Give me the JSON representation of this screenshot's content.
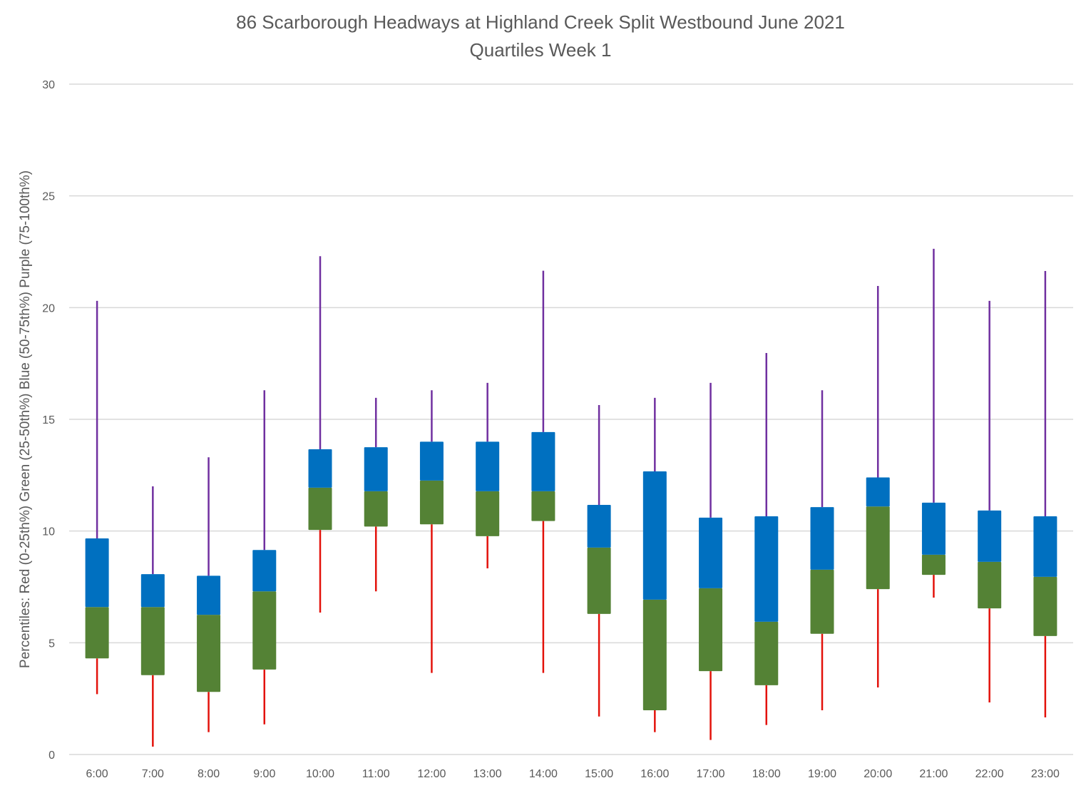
{
  "chart_data": {
    "type": "boxplot",
    "title": "86 Scarborough Headways at Highland Creek Split Westbound June 2021",
    "subtitle": "Quartiles Week 1",
    "xlabel": "",
    "ylabel": "Percentiles:  Red (0-25th%)  Green (25-50th%)  Blue (50-75th%)  Purple (75-100th%)",
    "ylim": [
      0,
      30
    ],
    "yticks": [
      0,
      5,
      10,
      15,
      20,
      25,
      30
    ],
    "grid": true,
    "legend": "none",
    "colors": {
      "min_to_q1": "#E3120B",
      "q1_to_median": "#548235",
      "median_to_q3": "#0070C0",
      "q3_to_max": "#7030A0",
      "grid": "#D9D9D9",
      "text": "#595959"
    },
    "categories": [
      "6:00",
      "7:00",
      "8:00",
      "9:00",
      "10:00",
      "11:00",
      "12:00",
      "13:00",
      "14:00",
      "15:00",
      "16:00",
      "17:00",
      "18:00",
      "19:00",
      "20:00",
      "21:00",
      "22:00",
      "23:00"
    ],
    "series": [
      {
        "name": "min",
        "values": [
          2.7,
          0.35,
          1.0,
          1.35,
          6.35,
          7.3,
          3.65,
          8.33,
          3.65,
          1.7,
          1.0,
          0.65,
          1.32,
          1.98,
          3.0,
          7.02,
          2.33,
          1.66
        ]
      },
      {
        "name": "q1",
        "values": [
          4.3,
          3.55,
          2.8,
          3.8,
          10.05,
          10.2,
          10.3,
          9.77,
          10.45,
          6.29,
          1.98,
          3.73,
          3.1,
          5.4,
          7.4,
          8.04,
          6.54,
          5.3
        ]
      },
      {
        "name": "median",
        "values": [
          6.6,
          6.6,
          6.25,
          7.3,
          11.94,
          11.78,
          12.26,
          11.78,
          11.78,
          9.26,
          6.93,
          7.44,
          5.94,
          8.27,
          11.1,
          8.94,
          8.62,
          7.95
        ]
      },
      {
        "name": "q3",
        "values": [
          9.67,
          8.07,
          8.0,
          9.15,
          13.66,
          13.75,
          14.0,
          14.0,
          14.43,
          11.17,
          12.67,
          10.6,
          10.66,
          11.07,
          12.4,
          11.27,
          10.92,
          10.66
        ]
      },
      {
        "name": "max",
        "values": [
          20.3,
          12.0,
          13.3,
          16.3,
          22.3,
          15.96,
          16.3,
          16.63,
          21.65,
          15.64,
          15.96,
          16.63,
          17.97,
          16.3,
          20.97,
          22.63,
          20.3,
          21.64
        ]
      }
    ]
  }
}
